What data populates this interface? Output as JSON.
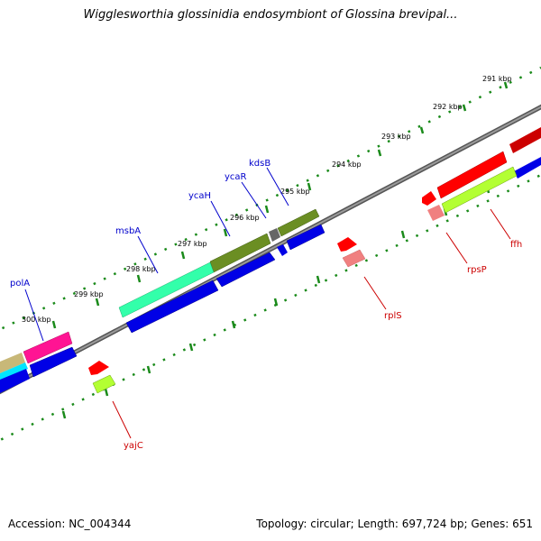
{
  "title": "Wigglesworthia glossinidia endosymbiont of Glossina brevipal...",
  "footer": {
    "accession": "Accession: NC_004344",
    "topology": "Topology: circular; Length: 697,724 bp; Genes: 651"
  },
  "ticks": [
    {
      "label": "291 kbp"
    },
    {
      "label": "292 kbp"
    },
    {
      "label": "293 kbp"
    },
    {
      "label": "294 kbp"
    },
    {
      "label": "295 kbp"
    },
    {
      "label": "296 kbp"
    },
    {
      "label": "297 kbp"
    },
    {
      "label": "298 kbp"
    },
    {
      "label": "299 kbp"
    },
    {
      "label": "300 kbp"
    }
  ],
  "genes_forward_labels": [
    {
      "name": "kdsB",
      "color": "#0000cc"
    },
    {
      "name": "ycaR",
      "color": "#0000cc"
    },
    {
      "name": "ycaH",
      "color": "#0000cc"
    },
    {
      "name": "msbA",
      "color": "#0000cc"
    },
    {
      "name": "polA",
      "color": "#0000cc"
    }
  ],
  "genes_reverse_labels": [
    {
      "name": "ffh",
      "color": "#cc0000"
    },
    {
      "name": "rpsP",
      "color": "#cc0000"
    },
    {
      "name": "rplS",
      "color": "#cc0000"
    },
    {
      "name": "yajC",
      "color": "#cc0000"
    }
  ],
  "colors": {
    "backbone": "#7a7a7a",
    "tick_dot": "#1a8a1a",
    "forward_cds": "#0000e6",
    "reverse_cds": "#ff0000",
    "rrna_pink": "#f08080",
    "trna_lime": "#b3ff33",
    "olive": "#6b8e23",
    "aquamarine": "#33ffaa",
    "magenta": "#ff1493",
    "cyan": "#00e5ff",
    "tan": "#c8b878"
  }
}
